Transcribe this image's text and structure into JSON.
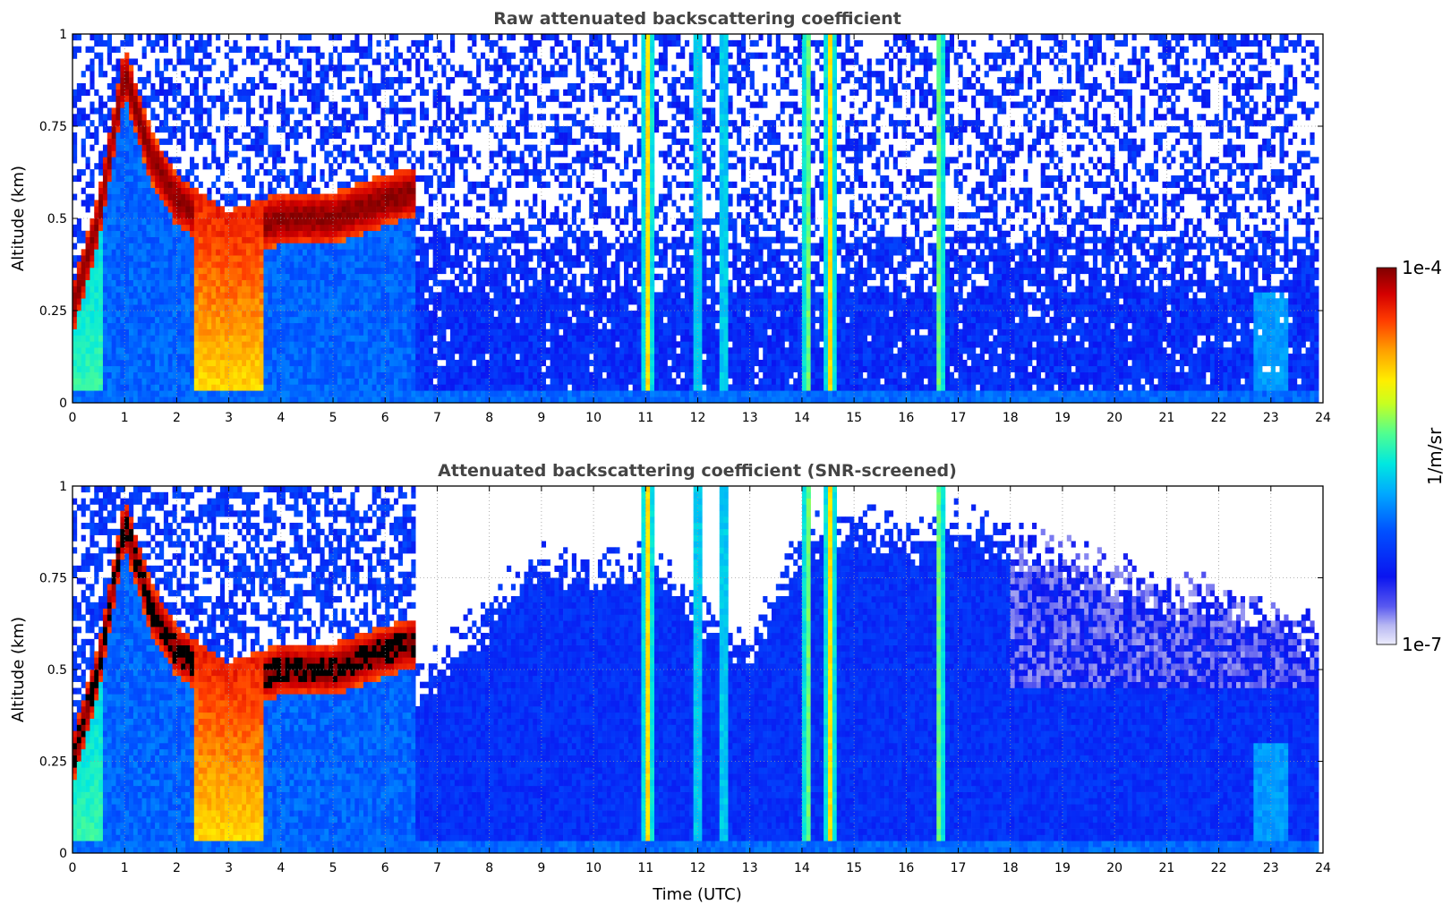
{
  "chart_data": [
    {
      "type": "heatmap",
      "title": "Raw attenuated backscattering coefficient",
      "xlabel": "",
      "ylabel": "Altitude (km)",
      "xlim": [
        0,
        24
      ],
      "ylim": [
        0,
        1
      ],
      "x_ticks": [
        "0",
        "1",
        "2",
        "3",
        "4",
        "5",
        "6",
        "7",
        "8",
        "9",
        "10",
        "11",
        "12",
        "13",
        "14",
        "15",
        "16",
        "17",
        "18",
        "19",
        "20",
        "21",
        "22",
        "23",
        "24"
      ],
      "y_ticks": [
        "0",
        "0.25",
        "0.5",
        "0.75",
        "1"
      ],
      "grid": true,
      "colorscale": "jet",
      "features": {
        "early_layer_top_km": [
          [
            0.0,
            0.3
          ],
          [
            0.5,
            0.55
          ],
          [
            1.0,
            0.95
          ],
          [
            1.5,
            0.72
          ],
          [
            2.0,
            0.6
          ],
          [
            3.0,
            0.5
          ],
          [
            4.0,
            0.55
          ],
          [
            5.0,
            0.55
          ],
          [
            6.0,
            0.6
          ],
          [
            6.5,
            0.62
          ]
        ],
        "dense_column_hours": [
          [
            2.35,
            3.7
          ]
        ],
        "vertical_streaks_hours": [
          11.05,
          12.0,
          12.5,
          14.1,
          14.55,
          16.65
        ]
      }
    },
    {
      "type": "heatmap",
      "title": "Attenuated backscattering coefficient (SNR-screened)",
      "xlabel": "Time (UTC)",
      "ylabel": "Altitude (km)",
      "xlim": [
        0,
        24
      ],
      "ylim": [
        0,
        1
      ],
      "x_ticks": [
        "0",
        "1",
        "2",
        "3",
        "4",
        "5",
        "6",
        "7",
        "8",
        "9",
        "10",
        "11",
        "12",
        "13",
        "14",
        "15",
        "16",
        "17",
        "18",
        "19",
        "20",
        "21",
        "22",
        "23",
        "24"
      ],
      "y_ticks": [
        "0",
        "0.25",
        "0.5",
        "0.75",
        "1"
      ],
      "grid": true,
      "colorscale": "jet",
      "features": {
        "signal_top_km": [
          [
            6.5,
            0.45
          ],
          [
            7.0,
            0.5
          ],
          [
            8.0,
            0.65
          ],
          [
            9.0,
            0.8
          ],
          [
            10.0,
            0.75
          ],
          [
            11.0,
            0.8
          ],
          [
            12.0,
            0.65
          ],
          [
            13.0,
            0.55
          ],
          [
            14.0,
            0.85
          ],
          [
            15.0,
            0.9
          ],
          [
            16.0,
            0.85
          ],
          [
            17.0,
            0.9
          ],
          [
            18.0,
            0.85
          ],
          [
            19.0,
            0.8
          ],
          [
            20.0,
            0.75
          ],
          [
            21.0,
            0.7
          ],
          [
            22.0,
            0.7
          ],
          [
            23.0,
            0.65
          ],
          [
            23.9,
            0.6
          ]
        ]
      }
    }
  ],
  "colorbar": {
    "max_label": "1e-4",
    "min_label": "1e-7",
    "unit_label": "1/m/sr",
    "scale": "log"
  }
}
